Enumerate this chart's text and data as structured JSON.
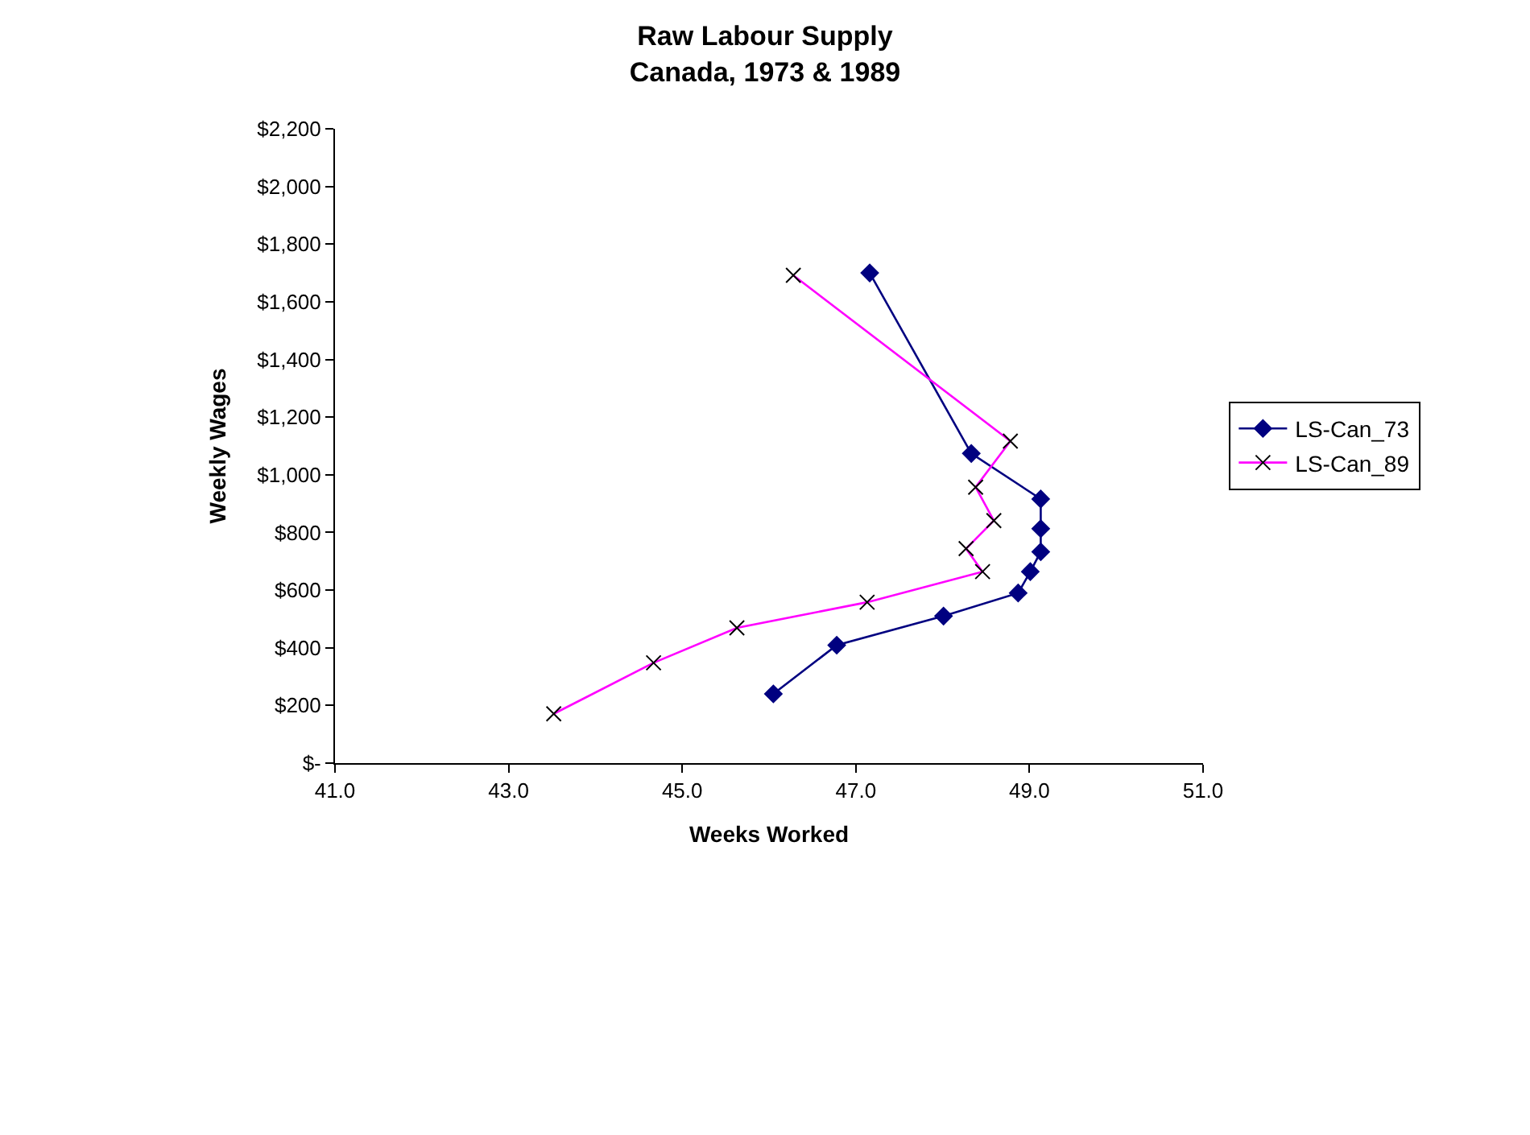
{
  "chart_data": {
    "type": "line",
    "title": "Raw Labour Supply\nCanada, 1973 & 1989",
    "xlabel": "Weeks Worked",
    "ylabel": "Weekly Wages",
    "series": [
      {
        "name": "LS-Can_73",
        "color": "#000080",
        "marker": "diamond",
        "x": [
          47.16,
          48.33,
          49.13,
          49.13,
          49.13,
          49.01,
          48.87,
          48.01,
          46.78,
          46.05
        ],
        "values": [
          1700,
          1074,
          916,
          813,
          733,
          664,
          590,
          510,
          409,
          240
        ]
      },
      {
        "name": "LS-Can_89",
        "color": "#ff00ff",
        "marker": "cross",
        "x": [
          46.28,
          48.78,
          48.38,
          48.59,
          48.27,
          48.46,
          47.13,
          45.63,
          44.67,
          43.52
        ],
        "values": [
          1692,
          1117,
          957,
          841,
          744,
          664,
          558,
          469,
          348,
          171
        ]
      }
    ],
    "xlim": [
      41,
      51
    ],
    "xticks": [
      {
        "value": 41,
        "label": "41.0"
      },
      {
        "value": 43,
        "label": "43.0"
      },
      {
        "value": 45,
        "label": "45.0"
      },
      {
        "value": 47,
        "label": "47.0"
      },
      {
        "value": 49,
        "label": "49.0"
      },
      {
        "value": 51,
        "label": "51.0"
      }
    ],
    "ylim": [
      0,
      2200
    ],
    "yticks": [
      {
        "value": 0,
        "label": "$-"
      },
      {
        "value": 200,
        "label": "$200"
      },
      {
        "value": 400,
        "label": "$400"
      },
      {
        "value": 600,
        "label": "$600"
      },
      {
        "value": 800,
        "label": "$800"
      },
      {
        "value": 1000,
        "label": "$1,000"
      },
      {
        "value": 1200,
        "label": "$1,200"
      },
      {
        "value": 1400,
        "label": "$1,400"
      },
      {
        "value": 1600,
        "label": "$1,600"
      },
      {
        "value": 1800,
        "label": "$1,800"
      },
      {
        "value": 2000,
        "label": "$2,000"
      },
      {
        "value": 2200,
        "label": "$2,200"
      }
    ],
    "legend": "right",
    "line_style": "solid"
  }
}
